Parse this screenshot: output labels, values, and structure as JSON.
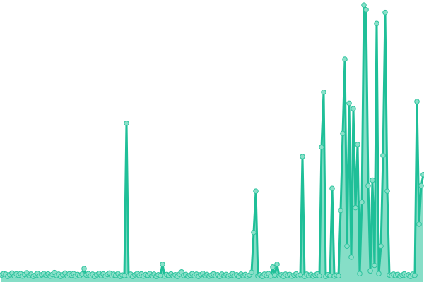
{
  "chart_data": {
    "type": "area",
    "title": "",
    "xlabel": "",
    "ylabel": "",
    "ylim": [
      0,
      100
    ],
    "grid": false,
    "legend": "none",
    "colors": {
      "line": "#1fbf98",
      "fill": "#86dec7",
      "marker_fill": "#8ae0c9",
      "marker_stroke": "#2cc39d"
    },
    "series": [
      {
        "values": [
          1.5,
          2,
          1.8,
          1,
          1.6,
          2.2,
          1.2,
          1.9,
          1.4,
          2,
          1.1,
          1.7,
          2.3,
          1.3,
          1.8,
          1,
          1.5,
          2.1,
          1.2,
          1.6,
          2,
          1.4,
          1.9,
          1.1,
          1.7,
          2.4,
          1.3,
          1.8,
          1,
          1.6,
          2.2,
          1.2,
          1.9,
          1.4,
          2,
          1.1,
          1.7,
          1.3,
          1.8,
          3.8,
          1.5,
          2,
          1.2,
          1.8,
          1,
          1.6,
          2.1,
          1.3,
          1.9,
          1.1,
          1.7,
          2.2,
          1.2,
          1.8,
          1.4,
          2,
          1,
          1.5,
          1.3,
          56.7,
          1.2,
          1.8,
          1,
          1.6,
          2,
          1.3,
          1.9,
          1.1,
          1.7,
          1.4,
          2,
          1.2,
          1.8,
          1,
          1.6,
          1.3,
          5.4,
          1.1,
          1.7,
          1.4,
          1.9,
          1.2,
          1.6,
          1,
          1.8,
          2.6,
          1.3,
          1.7,
          1.1,
          1.5,
          2,
          1.2,
          1.8,
          1,
          1.6,
          2.1,
          1.3,
          1.7,
          1.1,
          1.5,
          1.9,
          1.2,
          1.6,
          1,
          1.8,
          1.3,
          1.7,
          1.1,
          1.5,
          2,
          1.2,
          1.6,
          1,
          1.8,
          1.3,
          1.7,
          1.1,
          1.5,
          2.5,
          17,
          32,
          1.2,
          1.6,
          1,
          1.8,
          1.3,
          2,
          1.1,
          4.4,
          1.5,
          5.4,
          1.2,
          1.6,
          1,
          1.8,
          1.3,
          1.7,
          1.1,
          1.5,
          1.9,
          1.2,
          1.6,
          44.6,
          1,
          1.8,
          1.3,
          1.7,
          1.1,
          1.5,
          1.9,
          1.2,
          48,
          68,
          1,
          1.6,
          1.3,
          33,
          1.1,
          1.5,
          1.2,
          25,
          53,
          80,
          12,
          64,
          8,
          62,
          26,
          49,
          2,
          28,
          99.7,
          98,
          34,
          3,
          36,
          5,
          93,
          2,
          12,
          45,
          97,
          32,
          1.5,
          1.2,
          1.8,
          1.3,
          1.7,
          1.1,
          1.5,
          1.9,
          1.2,
          1.6,
          1,
          1.8,
          1.4,
          64.6,
          20,
          34,
          38
        ]
      }
    ]
  }
}
